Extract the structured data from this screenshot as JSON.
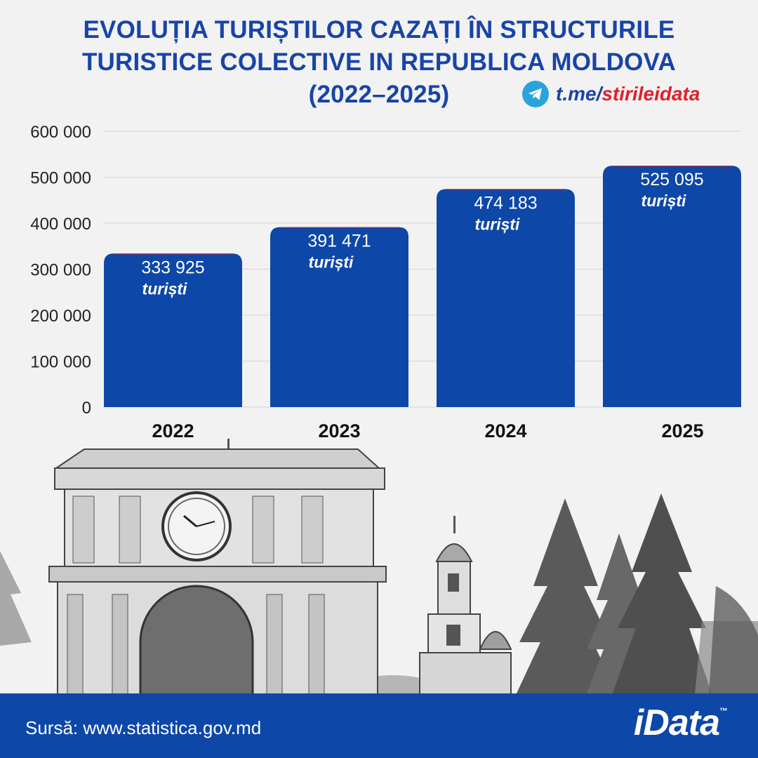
{
  "title": {
    "line1": "EVOLUȚIA TURIȘTILOR CAZAȚI ÎN STRUCTURILE",
    "line2": "TURISTICE COLECTIVE IN REPUBLICA MOLDOVA",
    "line3": "(2022–2025)"
  },
  "telegram": {
    "prefix": "t.me/",
    "handle": "stirileidata",
    "icon": "telegram-icon"
  },
  "chart_data": {
    "type": "bar",
    "categories": [
      "2022",
      "2023",
      "2024",
      "2025"
    ],
    "values": [
      333925,
      391471,
      474183,
      525095
    ],
    "value_labels": [
      "333 925",
      "391 471",
      "474 183",
      "525 095"
    ],
    "unit_label": "turiști",
    "y_ticks": [
      "0",
      "100 000",
      "200 000",
      "300 000",
      "400 000",
      "500 000",
      "600 000"
    ],
    "ylim": [
      0,
      600000
    ],
    "grid": true,
    "bar_color": "#0d47a8",
    "title": "EVOLUȚIA TURIȘTILOR CAZAȚI ÎN STRUCTURILE TURISTICE COLECTIVE IN REPUBLICA MOLDOVA (2022–2025)"
  },
  "footer": {
    "source": "Sursă: www.statistica.gov.md",
    "logo": "iData",
    "trademark": "™"
  },
  "colors": {
    "accent": "#1844a8",
    "bar": "#0d47a8",
    "footer": "#0d47a8",
    "highlight": "#e0202e",
    "telegram": "#29a3dc"
  }
}
